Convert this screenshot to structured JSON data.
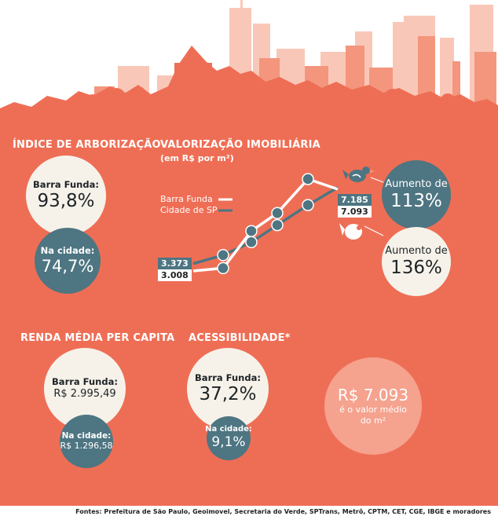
{
  "arborizacao": {
    "title": "ÍNDICE DE ARBORIZAÇÃO",
    "barra_funda_label": "Barra Funda:",
    "barra_funda_value": "93,8%",
    "cidade_label": "Na cidade:",
    "cidade_value": "74,7%"
  },
  "valorizacao": {
    "title": "VALORIZAÇÃO IMOBILIÁRIA",
    "subtitle": "(em R$ por m²)",
    "legend_barra": "Barra Funda",
    "legend_cidade": "Cidade de SP",
    "start_cidade": "3.373",
    "start_barra": "3.008",
    "end_cidade": "7.185",
    "end_barra": "7.093",
    "aumento_cidade_label": "Aumento de",
    "aumento_cidade_value": "113%",
    "aumento_barra_label": "Aumento de",
    "aumento_barra_value": "136%"
  },
  "renda": {
    "title": "RENDA MÉDIA PER CAPITA",
    "barra_funda_label": "Barra Funda:",
    "barra_funda_value": "R$ 2.995,49",
    "cidade_label": "Na cidade:",
    "cidade_value": "R$ 1.296,58"
  },
  "acessibilidade": {
    "title": "ACESSIBILIDADE*",
    "barra_funda_label": "Barra Funda:",
    "barra_funda_value": "37,2%",
    "cidade_label": "Na cidade:",
    "cidade_value": "9,1%"
  },
  "valor_medio": {
    "value": "R$ 7.093",
    "text_line1": "é o valor médio",
    "text_line2": "do m²"
  },
  "footer": "Fontes: Prefeitura de São Paulo, Geoimovel, Secretaria do Verde, SPTrans, Metrô, CPTM, CET, CGE, IBGE e moradores",
  "colors": {
    "background": "#ee6e55",
    "cream": "#f6f2ea",
    "slate": "#4e7582",
    "peach": "#f5a28e"
  },
  "chart_data": {
    "type": "line",
    "title": "VALORIZAÇÃO IMOBILIÁRIA",
    "ylabel": "(em R$ por m²)",
    "series": [
      {
        "name": "Barra Funda",
        "color": "#ffffff",
        "values": [
          3008,
          3150,
          5000,
          5900,
          7600,
          7093
        ]
      },
      {
        "name": "Cidade de SP",
        "color": "#4e7582",
        "values": [
          3373,
          3800,
          4450,
          5300,
          6300,
          7185
        ]
      }
    ],
    "ylim": [
      2500,
      8000
    ],
    "legend": "top-left"
  }
}
